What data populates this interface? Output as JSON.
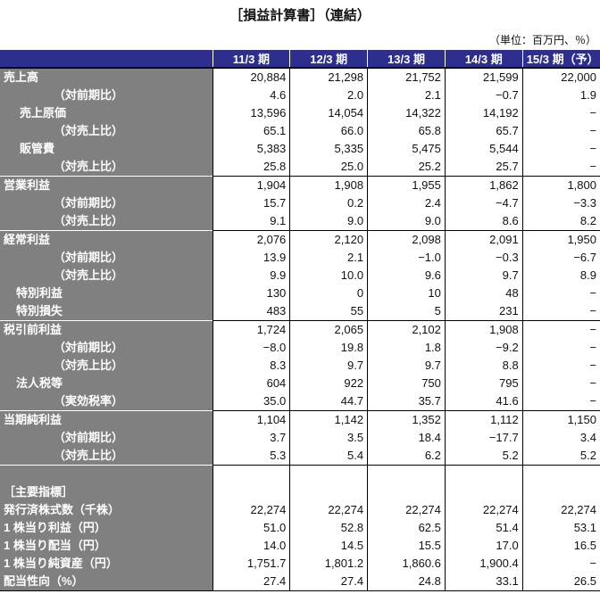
{
  "title": "［損益計算書］（連結）",
  "unit": "（単位：百万円、％）",
  "colors": {
    "header_bg": "#2e2e8f",
    "label_bg": "#808080"
  },
  "columns": [
    "11/3 期",
    "12/3 期",
    "13/3 期",
    "14/3 期",
    "15/3 期（予）"
  ],
  "rows": [
    {
      "label": "売上高",
      "indent": 0,
      "sep": false,
      "values": [
        "20,884",
        "21,298",
        "21,752",
        "21,599",
        "22,000"
      ]
    },
    {
      "label": "（対前期比）",
      "indent": 2,
      "values": [
        "4.6",
        "2.0",
        "2.1",
        "−0.7",
        "1.9"
      ]
    },
    {
      "label": "売上原価",
      "indent": 1,
      "values": [
        "13,596",
        "14,054",
        "14,322",
        "14,192",
        "−"
      ]
    },
    {
      "label": "（対売上比）",
      "indent": 2,
      "values": [
        "65.1",
        "66.0",
        "65.8",
        "65.7",
        "−"
      ]
    },
    {
      "label": "販管費",
      "indent": 1,
      "values": [
        "5,383",
        "5,335",
        "5,475",
        "5,544",
        "−"
      ]
    },
    {
      "label": "（対売上比）",
      "indent": 2,
      "values": [
        "25.8",
        "25.0",
        "25.2",
        "25.7",
        "−"
      ]
    },
    {
      "label": "営業利益",
      "indent": 0,
      "sep": true,
      "values": [
        "1,904",
        "1,908",
        "1,955",
        "1,862",
        "1,800"
      ]
    },
    {
      "label": "（対前期比）",
      "indent": 2,
      "values": [
        "15.7",
        "0.2",
        "2.4",
        "−4.7",
        "−3.3"
      ]
    },
    {
      "label": "（対売上比）",
      "indent": 2,
      "values": [
        "9.1",
        "9.0",
        "9.0",
        "8.6",
        "8.2"
      ]
    },
    {
      "label": "経常利益",
      "indent": 0,
      "sep": true,
      "values": [
        "2,076",
        "2,120",
        "2,098",
        "2,091",
        "1,950"
      ]
    },
    {
      "label": "（対前期比）",
      "indent": 2,
      "values": [
        "13.9",
        "2.1",
        "−1.0",
        "−0.3",
        "−6.7"
      ]
    },
    {
      "label": "（対売上比）",
      "indent": 2,
      "values": [
        "9.9",
        "10.0",
        "9.6",
        "9.7",
        "8.9"
      ]
    },
    {
      "label": "特別利益",
      "indent": 3,
      "values": [
        "130",
        "0",
        "10",
        "48",
        "−"
      ]
    },
    {
      "label": "特別損失",
      "indent": 3,
      "values": [
        "483",
        "55",
        "5",
        "231",
        "−"
      ]
    },
    {
      "label": "税引前利益",
      "indent": 0,
      "sep": true,
      "values": [
        "1,724",
        "2,065",
        "2,102",
        "1,908",
        "−"
      ]
    },
    {
      "label": "（対前期比）",
      "indent": 2,
      "values": [
        "−8.0",
        "19.8",
        "1.8",
        "−9.2",
        "−"
      ]
    },
    {
      "label": "（対売上比）",
      "indent": 2,
      "values": [
        "8.3",
        "9.7",
        "9.7",
        "8.8",
        "−"
      ]
    },
    {
      "label": "法人税等",
      "indent": 3,
      "values": [
        "604",
        "922",
        "750",
        "795",
        "−"
      ]
    },
    {
      "label": "（実効税率）",
      "indent": 2,
      "values": [
        "35.0",
        "44.7",
        "35.7",
        "41.6",
        "−"
      ]
    },
    {
      "label": "当期純利益",
      "indent": 0,
      "sep": true,
      "values": [
        "1,104",
        "1,142",
        "1,352",
        "1,112",
        "1,150"
      ]
    },
    {
      "label": "（対前期比）",
      "indent": 2,
      "values": [
        "3.7",
        "3.5",
        "18.4",
        "−17.7",
        "3.4"
      ]
    },
    {
      "label": "（対売上比）",
      "indent": 2,
      "values": [
        "5.3",
        "5.4",
        "6.2",
        "5.2",
        "5.2"
      ]
    }
  ],
  "indicators_heading": "［主要指標］",
  "indicators": [
    {
      "label": "発行済株式数（千株）",
      "values": [
        "22,274",
        "22,274",
        "22,274",
        "22,274",
        "22,274"
      ]
    },
    {
      "label": "1 株当り利益（円）",
      "values": [
        "51.0",
        "52.8",
        "62.5",
        "51.4",
        "53.1"
      ]
    },
    {
      "label": "1 株当り配当（円）",
      "values": [
        "14.0",
        "14.5",
        "15.5",
        "17.0",
        "16.5"
      ]
    },
    {
      "label": "1 株当り純資産（円）",
      "values": [
        "1,751.7",
        "1,801.2",
        "1,860.6",
        "1,900.4",
        "−"
      ]
    },
    {
      "label": "配当性向（%）",
      "values": [
        "27.4",
        "27.4",
        "24.8",
        "33.1",
        "26.5"
      ]
    }
  ]
}
